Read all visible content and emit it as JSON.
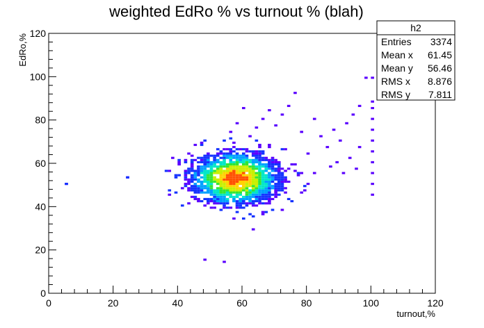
{
  "chart_data": {
    "type": "heatmap",
    "title": "weighted EdRo % vs turnout % (blah)",
    "xlabel": "turnout,%",
    "ylabel": "EdRo,%",
    "xlim": [
      0,
      120
    ],
    "ylim": [
      0,
      120
    ],
    "x_ticks": [
      "0",
      "20",
      "40",
      "60",
      "80",
      "100",
      "120"
    ],
    "y_ticks": [
      "0",
      "20",
      "40",
      "60",
      "80",
      "100",
      "120"
    ],
    "grid": false,
    "bin_size": 1,
    "palette": [
      "#5a00ff",
      "#1432ff",
      "#00a0ff",
      "#00e6c8",
      "#32e632",
      "#c8f000",
      "#ffd200",
      "#ff5000"
    ],
    "density": {
      "center": [
        58,
        53
      ],
      "sigma": [
        7.5,
        6.5
      ]
    },
    "outlier_bins": [
      [
        5,
        50
      ],
      [
        24,
        53
      ],
      [
        48,
        15
      ],
      [
        54,
        14
      ],
      [
        63,
        29
      ],
      [
        100,
        88
      ],
      [
        100,
        85
      ],
      [
        100,
        80
      ],
      [
        100,
        75
      ],
      [
        100,
        70
      ],
      [
        100,
        65
      ],
      [
        100,
        60
      ],
      [
        100,
        55
      ],
      [
        100,
        50
      ],
      [
        100,
        45
      ],
      [
        98,
        99
      ],
      [
        100,
        99
      ],
      [
        96,
        86
      ],
      [
        94,
        82
      ],
      [
        92,
        78
      ],
      [
        90,
        70
      ],
      [
        88,
        75
      ],
      [
        86,
        67
      ],
      [
        84,
        72
      ],
      [
        82,
        80
      ],
      [
        80,
        64
      ],
      [
        78,
        74
      ],
      [
        76,
        92
      ],
      [
        74,
        86
      ],
      [
        72,
        82
      ],
      [
        70,
        77
      ],
      [
        68,
        84
      ],
      [
        66,
        80
      ],
      [
        64,
        76
      ],
      [
        62,
        72
      ],
      [
        60,
        85
      ],
      [
        58,
        78
      ],
      [
        56,
        74
      ],
      [
        40,
        60
      ],
      [
        38,
        62
      ],
      [
        41,
        48
      ],
      [
        44,
        44
      ],
      [
        46,
        42
      ],
      [
        48,
        40
      ],
      [
        87,
        58
      ],
      [
        89,
        60
      ],
      [
        91,
        55
      ],
      [
        93,
        62
      ],
      [
        95,
        57
      ],
      [
        80,
        50
      ],
      [
        82,
        55
      ],
      [
        78,
        46
      ],
      [
        76,
        56
      ],
      [
        73,
        52
      ],
      [
        96,
        67
      ]
    ]
  },
  "stats_box": {
    "name": "h2",
    "rows": [
      {
        "label": "Entries",
        "value": "3374"
      },
      {
        "label": "Mean x",
        "value": "61.45"
      },
      {
        "label": "Mean y",
        "value": "56.46"
      },
      {
        "label": "RMS x",
        "value": "8.876"
      },
      {
        "label": "RMS y",
        "value": "7.811"
      }
    ]
  }
}
